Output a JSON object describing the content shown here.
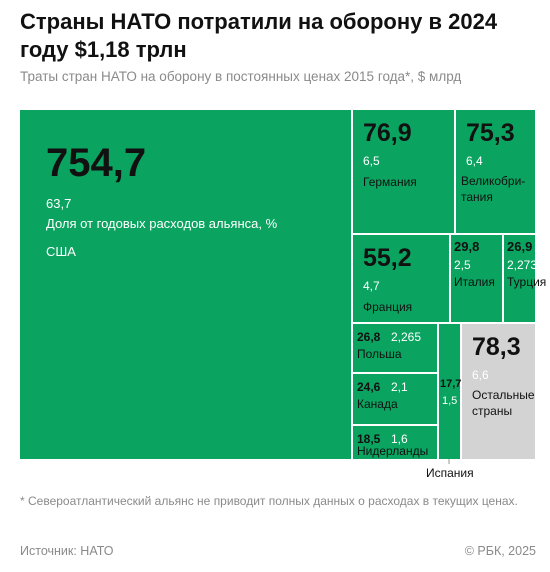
{
  "header": {
    "title": "Страны НАТО потратили на оборону в 2024 году $1,18 трлн",
    "subtitle": "Траты стран НАТО на оборону в постоянных ценах 2015 года*, $ млрд"
  },
  "colors": {
    "green": "#0ba360",
    "gray": "#d3d3d3",
    "text_dark": "#111111",
    "text_light": "#ffffff",
    "text_gray_on_gray": "#ffffff"
  },
  "chart_data": {
    "type": "treemap",
    "title": "Страны НАТО потратили на оборону в 2024 году $1,18 трлн",
    "subtitle": "Траты стран НАТО на оборону в постоянных ценах 2015 года*, $ млрд",
    "share_label": "Доля от годовых расходов альянса, %",
    "items": [
      {
        "name": "США",
        "value": "754,7",
        "value_num": 754.7,
        "share": "63,7"
      },
      {
        "name": "Германия",
        "value": "76,9",
        "value_num": 76.9,
        "share": "6,5"
      },
      {
        "name": "Великобритания",
        "value": "75,3",
        "value_num": 75.3,
        "share": "6,4"
      },
      {
        "name": "Франция",
        "value": "55,2",
        "value_num": 55.2,
        "share": "4,7"
      },
      {
        "name": "Италия",
        "value": "29,8",
        "value_num": 29.8,
        "share": "2,5"
      },
      {
        "name": "Турция",
        "value": "26,9",
        "value_num": 26.9,
        "share": "2,273"
      },
      {
        "name": "Польша",
        "value": "26,8",
        "value_num": 26.8,
        "share": "2,265"
      },
      {
        "name": "Канада",
        "value": "24,6",
        "value_num": 24.6,
        "share": "2,1"
      },
      {
        "name": "Нидерланды",
        "value": "18,5",
        "value_num": 18.5,
        "share": "1,6"
      },
      {
        "name": "Испания",
        "value": "17,7",
        "value_num": 17.7,
        "share": "1,5"
      },
      {
        "name": "Остальные страны",
        "value": "78,3",
        "value_num": 78.3,
        "share": "6,6"
      }
    ]
  },
  "footer": {
    "footnote": "* Североатлантический альянс не приводит полных данных о расходах в текущих ценах.",
    "source": "Источник: НАТО",
    "copyright": "© РБК, 2025"
  }
}
